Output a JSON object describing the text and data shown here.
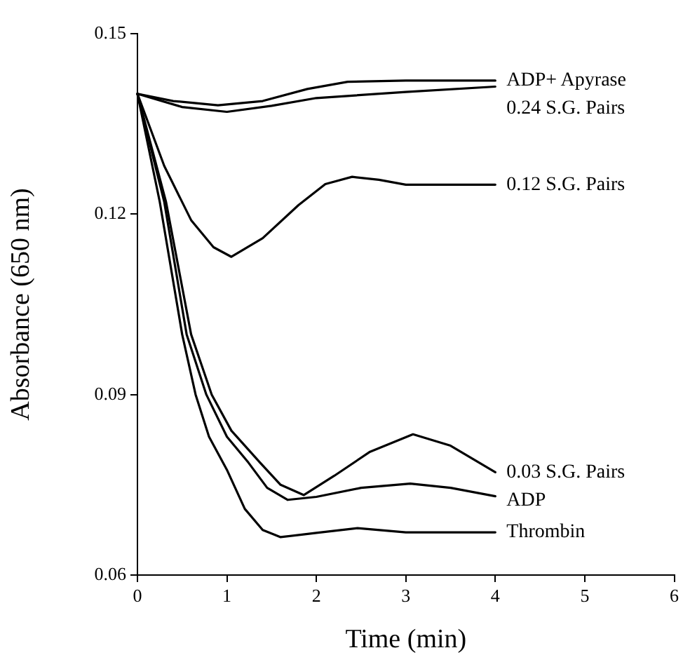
{
  "chart_data": {
    "type": "line",
    "xlabel": "Time (min)",
    "ylabel": "Absorbance (650 nm)",
    "xlim": [
      0,
      6
    ],
    "xticks": [
      0,
      1,
      2,
      3,
      4,
      5,
      6
    ],
    "ylim": [
      0.06,
      0.15
    ],
    "yticks": [
      0.06,
      0.09,
      0.12,
      0.15
    ],
    "grid": false,
    "legend": false,
    "marker": "none",
    "line_style": "solid",
    "series": [
      {
        "name": "ADP+ Apyrase",
        "color": "#000000",
        "x": [
          0,
          0.4,
          0.9,
          1.4,
          1.9,
          2.35,
          3,
          4
        ],
        "values": [
          0.14,
          0.1388,
          0.1381,
          0.1388,
          0.1408,
          0.142,
          0.1422,
          0.1422
        ]
      },
      {
        "name": "0.24 S.G. Pairs",
        "color": "#000000",
        "x": [
          0,
          0.5,
          1.0,
          1.5,
          2,
          3,
          4
        ],
        "values": [
          0.14,
          0.1378,
          0.137,
          0.138,
          0.1393,
          0.1403,
          0.1412
        ]
      },
      {
        "name": "0.12 S.G. Pairs",
        "color": "#000000",
        "x": [
          0,
          0.3,
          0.6,
          0.85,
          1.05,
          1.4,
          1.8,
          2.1,
          2.4,
          2.7,
          3,
          4
        ],
        "values": [
          0.14,
          0.128,
          0.119,
          0.1145,
          0.1129,
          0.116,
          0.1215,
          0.125,
          0.1262,
          0.1257,
          0.1249,
          0.1249
        ]
      },
      {
        "name": "0.03 S.G. Pairs",
        "color": "#000000",
        "x": [
          0,
          0.32,
          0.6,
          0.83,
          1.05,
          1.37,
          1.6,
          1.86,
          2.2,
          2.6,
          3.08,
          3.5,
          4
        ],
        "values": [
          0.14,
          0.122,
          0.1,
          0.09,
          0.084,
          0.0787,
          0.075,
          0.0733,
          0.0765,
          0.0805,
          0.0834,
          0.0815,
          0.0771
        ]
      },
      {
        "name": "ADP",
        "color": "#000000",
        "x": [
          0,
          0.3,
          0.55,
          0.77,
          1.0,
          1.24,
          1.45,
          1.68,
          2,
          2.5,
          3.05,
          3.5,
          4
        ],
        "values": [
          0.14,
          0.122,
          0.1,
          0.09,
          0.083,
          0.0787,
          0.0745,
          0.0725,
          0.073,
          0.0745,
          0.0752,
          0.0745,
          0.0731
        ]
      },
      {
        "name": "Thrombin",
        "color": "#000000",
        "x": [
          0,
          0.25,
          0.5,
          0.65,
          0.8,
          1.0,
          1.2,
          1.4,
          1.6,
          2.0,
          2.46,
          3,
          4
        ],
        "values": [
          0.14,
          0.122,
          0.1,
          0.09,
          0.083,
          0.0775,
          0.071,
          0.0675,
          0.0663,
          0.067,
          0.0678,
          0.0671,
          0.0671
        ]
      }
    ]
  }
}
